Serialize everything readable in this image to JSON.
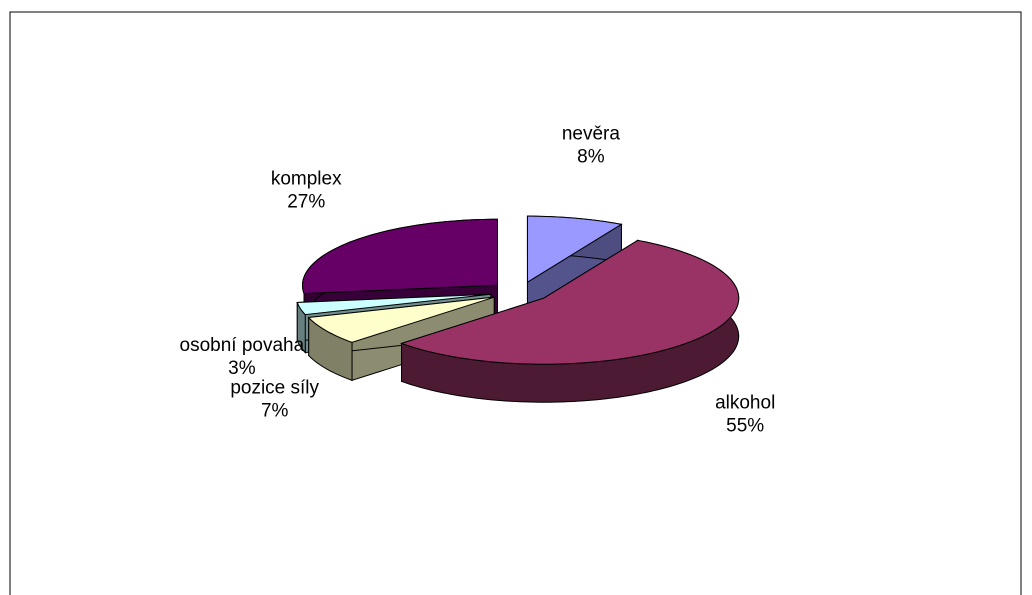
{
  "chart_data": {
    "type": "pie3d",
    "categories": [
      "nevěra",
      "alkohol",
      "pozice síly",
      "osobní povaha",
      "komplex"
    ],
    "values": [
      8,
      55,
      7,
      3,
      27
    ],
    "value_labels": [
      "8%",
      "55%",
      "7%",
      "3%",
      "27%"
    ],
    "colors": [
      "#9999ff",
      "#993366",
      "#ffffcc",
      "#ccffff",
      "#660066"
    ]
  }
}
